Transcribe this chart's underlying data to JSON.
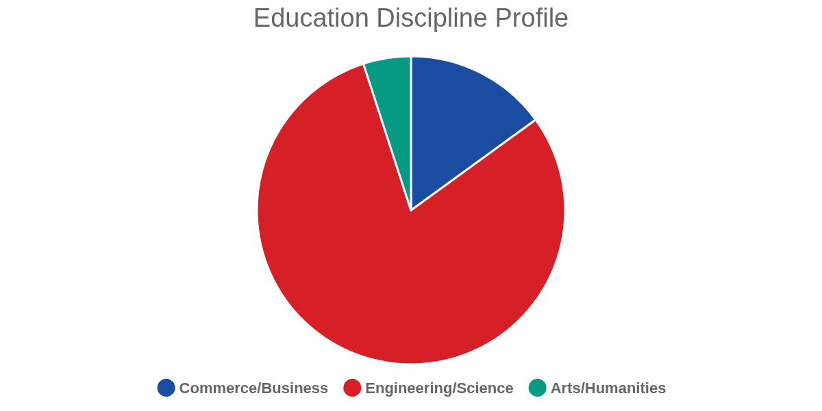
{
  "chart_data": {
    "type": "pie",
    "title": "Education Discipline Profile",
    "categories": [
      "Commerce/Business",
      "Engineering/Science",
      "Arts/Humanities"
    ],
    "values": [
      15,
      80,
      5
    ],
    "colors": [
      "#1a4ca1",
      "#d71f27",
      "#069a82"
    ],
    "legend": "bottom"
  }
}
